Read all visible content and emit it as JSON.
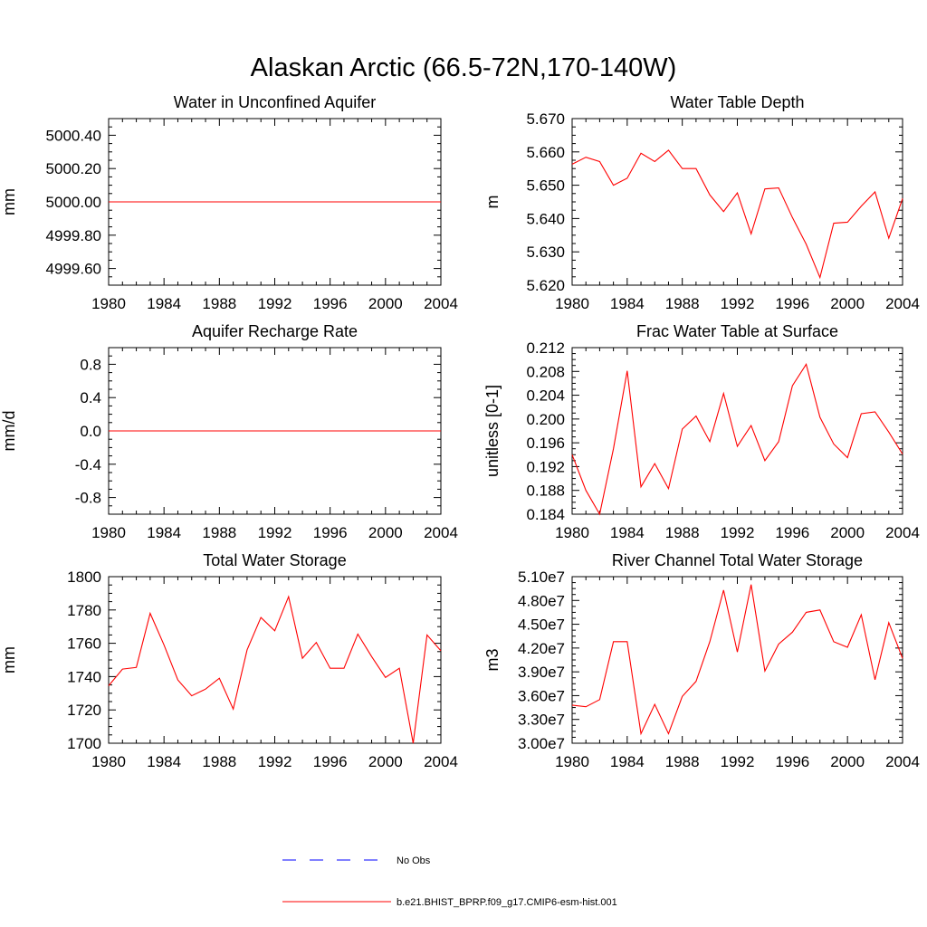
{
  "figure": {
    "title": "Alaskan Arctic (66.5-72N,170-140W)"
  },
  "colors": {
    "model_line": "#ff0000",
    "obs_line": "#0000ff",
    "axis": "#000000"
  },
  "legend": {
    "items": [
      {
        "label": "No Obs",
        "style": "dashed",
        "color": "#0000ff"
      },
      {
        "label": "b.e21.BHIST_BPRP.f09_g17.CMIP6-esm-hist.001",
        "style": "solid",
        "color": "#ff0000"
      }
    ]
  },
  "chart_data": [
    {
      "type": "line",
      "title": "Water in Unconfined Aquifer",
      "xlabel": "",
      "ylabel": "mm",
      "xlim": [
        1980,
        2004
      ],
      "ylim": [
        4999.5,
        5000.5
      ],
      "xticks": [
        1980,
        1984,
        1988,
        1992,
        1996,
        2000,
        2004
      ],
      "xtick_labels": [
        "1980",
        "1984",
        "1988",
        "1992",
        "1996",
        "2000",
        "2004"
      ],
      "yticks": [
        4999.6,
        4999.8,
        5000.0,
        5000.2,
        5000.4
      ],
      "ytick_labels": [
        "4999.60",
        "4999.80",
        "5000.00",
        "5000.20",
        "5000.40"
      ],
      "series": [
        {
          "x": [
            1980,
            1981,
            1982,
            1983,
            1984,
            1985,
            1986,
            1987,
            1988,
            1989,
            1990,
            1991,
            1992,
            1993,
            1994,
            1995,
            1996,
            1997,
            1998,
            1999,
            2000,
            2001,
            2002,
            2003,
            2004
          ],
          "y": [
            5000,
            5000,
            5000,
            5000,
            5000,
            5000,
            5000,
            5000,
            5000,
            5000,
            5000,
            5000,
            5000,
            5000,
            5000,
            5000,
            5000,
            5000,
            5000,
            5000,
            5000,
            5000,
            5000,
            5000,
            5000
          ]
        }
      ]
    },
    {
      "type": "line",
      "title": "Water Table Depth",
      "xlabel": "",
      "ylabel": "m",
      "xlim": [
        1980,
        2004
      ],
      "ylim": [
        5.62,
        5.67
      ],
      "xticks": [
        1980,
        1984,
        1988,
        1992,
        1996,
        2000,
        2004
      ],
      "xtick_labels": [
        "1980",
        "1984",
        "1988",
        "1992",
        "1996",
        "2000",
        "2004"
      ],
      "yticks": [
        5.62,
        5.63,
        5.64,
        5.65,
        5.66,
        5.67
      ],
      "ytick_labels": [
        "5.620",
        "5.630",
        "5.640",
        "5.650",
        "5.660",
        "5.670"
      ],
      "series": [
        {
          "x": [
            1980,
            1981,
            1982,
            1983,
            1984,
            1985,
            1986,
            1987,
            1988,
            1989,
            1990,
            1991,
            1992,
            1993,
            1994,
            1995,
            1996,
            1997,
            1998,
            1999,
            2000,
            2001,
            2002,
            2003,
            2004
          ],
          "y": [
            5.6563,
            5.6584,
            5.6571,
            5.65,
            5.6521,
            5.6596,
            5.6571,
            5.6605,
            5.655,
            5.655,
            5.6471,
            5.6421,
            5.6477,
            5.6354,
            5.6489,
            5.6492,
            5.6403,
            5.6323,
            5.6223,
            5.6386,
            5.6389,
            5.6437,
            5.648,
            5.6341,
            5.646
          ]
        }
      ]
    },
    {
      "type": "line",
      "title": "Aquifer Recharge Rate",
      "xlabel": "",
      "ylabel": "mm/d",
      "xlim": [
        1980,
        2004
      ],
      "ylim": [
        -1.0,
        1.0
      ],
      "xticks": [
        1980,
        1984,
        1988,
        1992,
        1996,
        2000,
        2004
      ],
      "xtick_labels": [
        "1980",
        "1984",
        "1988",
        "1992",
        "1996",
        "2000",
        "2004"
      ],
      "yticks": [
        -0.8,
        -0.4,
        0.0,
        0.4,
        0.8
      ],
      "ytick_labels": [
        "-0.8",
        "-0.4",
        "0.0",
        "0.4",
        "0.8"
      ],
      "series": [
        {
          "x": [
            1980,
            1981,
            1982,
            1983,
            1984,
            1985,
            1986,
            1987,
            1988,
            1989,
            1990,
            1991,
            1992,
            1993,
            1994,
            1995,
            1996,
            1997,
            1998,
            1999,
            2000,
            2001,
            2002,
            2003,
            2004
          ],
          "y": [
            0,
            0,
            0,
            0,
            0,
            0,
            0,
            0,
            0,
            0,
            0,
            0,
            0,
            0,
            0,
            0,
            0,
            0,
            0,
            0,
            0,
            0,
            0,
            0,
            0
          ]
        }
      ]
    },
    {
      "type": "line",
      "title": "Frac Water Table at Surface",
      "xlabel": "",
      "ylabel": "unitless [0-1]",
      "xlim": [
        1980,
        2004
      ],
      "ylim": [
        0.184,
        0.212
      ],
      "xticks": [
        1980,
        1984,
        1988,
        1992,
        1996,
        2000,
        2004
      ],
      "xtick_labels": [
        "1980",
        "1984",
        "1988",
        "1992",
        "1996",
        "2000",
        "2004"
      ],
      "yticks": [
        0.184,
        0.188,
        0.192,
        0.196,
        0.2,
        0.204,
        0.208,
        0.212
      ],
      "ytick_labels": [
        "0.184",
        "0.188",
        "0.192",
        "0.196",
        "0.200",
        "0.204",
        "0.208",
        "0.212"
      ],
      "series": [
        {
          "x": [
            1980,
            1981,
            1982,
            1983,
            1984,
            1985,
            1986,
            1987,
            1988,
            1989,
            1990,
            1991,
            1992,
            1993,
            1994,
            1995,
            1996,
            1997,
            1998,
            1999,
            2000,
            2001,
            2002,
            2003,
            2004
          ],
          "y": [
            0.194,
            0.188,
            0.184,
            0.195,
            0.2081,
            0.1886,
            0.1925,
            0.1883,
            0.1983,
            0.2005,
            0.1962,
            0.2043,
            0.1954,
            0.1989,
            0.193,
            0.1962,
            0.2056,
            0.2092,
            0.2003,
            0.1958,
            0.1935,
            0.2009,
            0.2012,
            0.1978,
            0.1941
          ]
        }
      ]
    },
    {
      "type": "line",
      "title": "Total Water Storage",
      "xlabel": "",
      "ylabel": "mm",
      "xlim": [
        1980,
        2004
      ],
      "ylim": [
        1700,
        1800
      ],
      "xticks": [
        1980,
        1984,
        1988,
        1992,
        1996,
        2000,
        2004
      ],
      "xtick_labels": [
        "1980",
        "1984",
        "1988",
        "1992",
        "1996",
        "2000",
        "2004"
      ],
      "yticks": [
        1700,
        1720,
        1740,
        1760,
        1780,
        1800
      ],
      "ytick_labels": [
        "1700",
        "1720",
        "1740",
        "1760",
        "1780",
        "1800"
      ],
      "series": [
        {
          "x": [
            1980,
            1981,
            1982,
            1983,
            1984,
            1985,
            1986,
            1987,
            1988,
            1989,
            1990,
            1991,
            1992,
            1993,
            1994,
            1995,
            1996,
            1997,
            1998,
            1999,
            2000,
            2001,
            2002,
            2003,
            2004
          ],
          "y": [
            1734.5,
            1744.5,
            1745.5,
            1778,
            1759,
            1738,
            1728.5,
            1732.5,
            1739,
            1720.5,
            1756,
            1775.5,
            1767.5,
            1788,
            1751,
            1760.5,
            1745,
            1745,
            1765.5,
            1752,
            1739.5,
            1745,
            1700,
            1765,
            1755.5
          ]
        }
      ]
    },
    {
      "type": "line",
      "title": "River Channel Total Water Storage",
      "xlabel": "",
      "ylabel": "m3",
      "xlim": [
        1980,
        2004
      ],
      "ylim": [
        30000000,
        51000000
      ],
      "xticks": [
        1980,
        1984,
        1988,
        1992,
        1996,
        2000,
        2004
      ],
      "xtick_labels": [
        "1980",
        "1984",
        "1988",
        "1992",
        "1996",
        "2000",
        "2004"
      ],
      "yticks": [
        30000000,
        33000000,
        36000000,
        39000000,
        42000000,
        45000000,
        48000000,
        51000000
      ],
      "ytick_labels": [
        "3.00e7",
        "3.30e7",
        "3.60e7",
        "3.90e7",
        "4.20e7",
        "4.50e7",
        "4.80e7",
        "5.10e7"
      ],
      "series": [
        {
          "x": [
            1980,
            1981,
            1982,
            1983,
            1984,
            1985,
            1986,
            1987,
            1988,
            1989,
            1990,
            1991,
            1992,
            1993,
            1994,
            1995,
            1996,
            1997,
            1998,
            1999,
            2000,
            2001,
            2002,
            2003,
            2004
          ],
          "y": [
            34800000,
            34600000,
            35500000,
            42800000,
            42800000,
            31200000,
            34900000,
            31200000,
            35900000,
            37800000,
            42800000,
            49300000,
            41500000,
            50000000,
            39100000,
            42500000,
            44000000,
            46500000,
            46800000,
            42800000,
            42100000,
            46200000,
            38000000,
            45200000,
            40700000
          ]
        }
      ]
    }
  ]
}
